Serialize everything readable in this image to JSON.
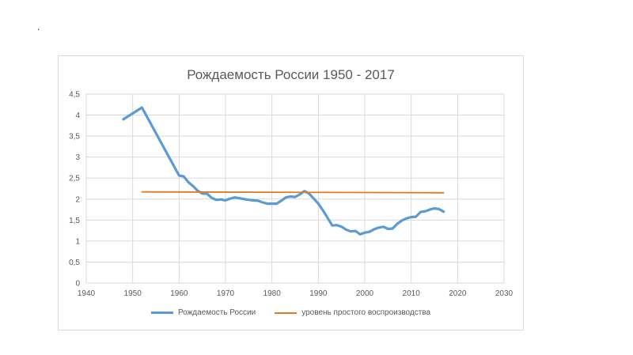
{
  "page": {
    "dot": "."
  },
  "chart_data": {
    "type": "line",
    "title": "Рождаемость России  1950 - 2017",
    "xlabel": "",
    "ylabel": "",
    "xlim": [
      1940,
      2030
    ],
    "ylim": [
      0,
      4.5
    ],
    "xticks": [
      1940,
      1950,
      1960,
      1970,
      1980,
      1990,
      2000,
      2010,
      2020,
      2030
    ],
    "yticks": [
      "0",
      "0,5",
      "1",
      "1,5",
      "2",
      "2,5",
      "3",
      "3,5",
      "4",
      "4,5"
    ],
    "grid": true,
    "legend_position": "bottom",
    "series": [
      {
        "name": "Рождаемость России",
        "color": "#5b9bd5",
        "x": [
          1948,
          1952,
          1960,
          1961,
          1962,
          1963,
          1964,
          1965,
          1966,
          1967,
          1968,
          1969,
          1970,
          1971,
          1972,
          1973,
          1974,
          1975,
          1976,
          1977,
          1978,
          1979,
          1980,
          1981,
          1982,
          1983,
          1984,
          1985,
          1986,
          1987,
          1988,
          1989,
          1990,
          1991,
          1992,
          1993,
          1994,
          1995,
          1996,
          1997,
          1998,
          1999,
          2000,
          2001,
          2002,
          2003,
          2004,
          2005,
          2006,
          2007,
          2008,
          2009,
          2010,
          2011,
          2012,
          2013,
          2014,
          2015,
          2016,
          2017
        ],
        "y": [
          3.9,
          4.18,
          2.56,
          2.54,
          2.4,
          2.31,
          2.2,
          2.13,
          2.13,
          2.03,
          1.98,
          1.99,
          1.97,
          2.01,
          2.04,
          2.02,
          2.0,
          1.98,
          1.97,
          1.96,
          1.92,
          1.89,
          1.89,
          1.89,
          1.96,
          2.04,
          2.06,
          2.05,
          2.11,
          2.19,
          2.13,
          2.01,
          1.89,
          1.73,
          1.55,
          1.37,
          1.38,
          1.34,
          1.27,
          1.23,
          1.24,
          1.16,
          1.2,
          1.22,
          1.28,
          1.32,
          1.34,
          1.29,
          1.3,
          1.41,
          1.49,
          1.54,
          1.57,
          1.58,
          1.69,
          1.71,
          1.75,
          1.78,
          1.76,
          1.7
        ]
      },
      {
        "name": "уровень простого воспроизводства",
        "color": "#e07b1f",
        "x": [
          1952,
          2017
        ],
        "y": [
          2.17,
          2.15
        ]
      }
    ]
  }
}
